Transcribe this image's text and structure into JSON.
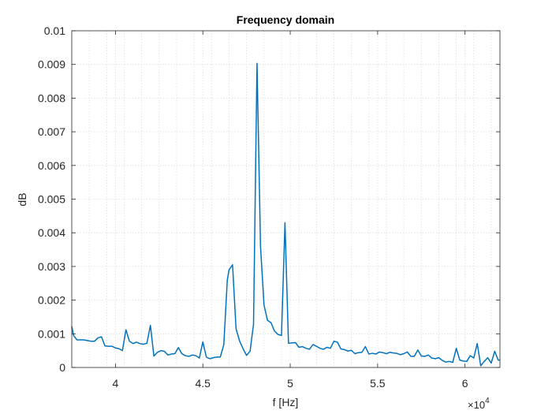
{
  "chart_data": {
    "type": "line",
    "title": "Frequency domain",
    "xlabel": "f [Hz]",
    "ylabel": "dB",
    "x_exponent_label": "×10",
    "x_exponent_power": "4",
    "xlim": [
      37500,
      62000
    ],
    "ylim": [
      0,
      0.01
    ],
    "x_tick_values": [
      40000,
      45000,
      50000,
      55000,
      60000
    ],
    "x_tick_labels": [
      "4",
      "4.5",
      "5",
      "5.5",
      "6"
    ],
    "x_minor_tick_values": [
      37500,
      38500,
      39500,
      40500,
      41500,
      42500,
      43500,
      44500,
      45500,
      46500,
      47500,
      48500,
      49500,
      50500,
      51500,
      52500,
      53500,
      54500,
      55500,
      56500,
      57500,
      58500,
      59500,
      60500,
      61500
    ],
    "y_tick_values": [
      0,
      0.001,
      0.002,
      0.003,
      0.004,
      0.005,
      0.006,
      0.007,
      0.008,
      0.009,
      0.01
    ],
    "y_tick_labels": [
      "0",
      "0.001",
      "0.002",
      "0.003",
      "0.004",
      "0.005",
      "0.006",
      "0.007",
      "0.008",
      "0.009",
      "0.01"
    ],
    "grid": true,
    "line_color": "#0072BD",
    "series": [
      {
        "x": [
          37500,
          37600,
          37800,
          38000,
          38200,
          38400,
          38600,
          38800,
          39000,
          39200,
          39400,
          39600,
          39800,
          40000,
          40200,
          40400,
          40600,
          40800,
          41000,
          41200,
          41400,
          41600,
          41800,
          42000,
          42200,
          42400,
          42600,
          42800,
          43000,
          43200,
          43400,
          43600,
          43800,
          44000,
          44200,
          44400,
          44600,
          44800,
          45000,
          45200,
          45400,
          45600,
          45800,
          46000,
          46200,
          46400,
          46500,
          46700,
          46900,
          47100,
          47300,
          47500,
          47700,
          47900,
          48100,
          48300,
          48500,
          48700,
          48900,
          49100,
          49300,
          49500,
          49700,
          49900,
          50100,
          50300,
          50500,
          50700,
          50900,
          51100,
          51300,
          51500,
          51700,
          51900,
          52100,
          52300,
          52500,
          52700,
          52900,
          53100,
          53300,
          53500,
          53700,
          53900,
          54100,
          54300,
          54500,
          54700,
          54900,
          55100,
          55300,
          55500,
          55700,
          55900,
          56100,
          56300,
          56500,
          56700,
          56900,
          57100,
          57300,
          57500,
          57700,
          57900,
          58100,
          58300,
          58500,
          58700,
          58900,
          59100,
          59300,
          59500,
          59700,
          59900,
          60100,
          60300,
          60500,
          60700,
          60900,
          61100,
          61300,
          61500,
          61700,
          61900,
          62000
        ],
        "y": [
          0.00122,
          0.00095,
          0.00082,
          0.00082,
          0.00082,
          0.0008,
          0.00078,
          0.00078,
          0.00088,
          0.00091,
          0.00064,
          0.00063,
          0.00063,
          0.00058,
          0.00056,
          0.0005,
          0.00112,
          0.00078,
          0.00071,
          0.00075,
          0.00071,
          0.00069,
          0.00072,
          0.00125,
          0.00034,
          0.00045,
          0.0005,
          0.00048,
          0.00037,
          0.0004,
          0.00041,
          0.00059,
          0.00041,
          0.00035,
          0.00033,
          0.00037,
          0.00035,
          0.00028,
          0.00076,
          0.00031,
          0.00026,
          0.00029,
          0.00031,
          0.00031,
          0.00068,
          0.0026,
          0.0029,
          0.00305,
          0.00115,
          0.00079,
          0.00056,
          0.00036,
          0.00048,
          0.00128,
          0.00903,
          0.0036,
          0.00185,
          0.0014,
          0.00133,
          0.00108,
          0.00098,
          0.00095,
          0.0043,
          0.00072,
          0.00073,
          0.00074,
          0.0006,
          0.00062,
          0.00057,
          0.00054,
          0.00068,
          0.00063,
          0.00057,
          0.00054,
          0.0006,
          0.00057,
          0.00078,
          0.00075,
          0.00055,
          0.00053,
          0.00049,
          0.00051,
          0.00041,
          0.00044,
          0.00045,
          0.00062,
          0.0004,
          0.00042,
          0.0004,
          0.00046,
          0.00044,
          0.00041,
          0.00045,
          0.00043,
          0.00042,
          0.00038,
          0.00041,
          0.00046,
          0.00033,
          0.00033,
          0.00052,
          0.00034,
          0.00033,
          0.00037,
          0.00028,
          0.00026,
          0.00029,
          0.00021,
          0.00016,
          0.00018,
          0.00015,
          0.00057,
          0.00022,
          0.00019,
          0.00018,
          0.00035,
          0.00028,
          0.00071,
          5e-05,
          0.00018,
          0.00029,
          0.00013,
          0.00048,
          0.00022,
          0.00022
        ]
      }
    ]
  }
}
